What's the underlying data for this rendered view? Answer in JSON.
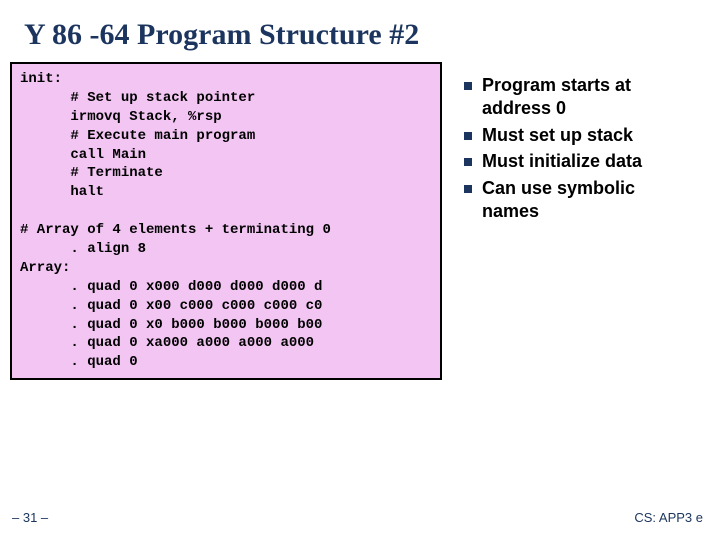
{
  "title": "Y 86 -64 Program Structure #2",
  "code": "init:\n      # Set up stack pointer\n      irmovq Stack, %rsp\n      # Execute main program\n      call Main\n      # Terminate\n      halt\n\n# Array of 4 elements + terminating 0\n      . align 8\nArray:\n      . quad 0 x000 d000 d000 d000 d\n      . quad 0 x00 c000 c000 c000 c0\n      . quad 0 x0 b000 b000 b000 b00\n      . quad 0 xa000 a000 a000 a000\n      . quad 0",
  "bullets": [
    "Program starts at address 0",
    "Must set up stack",
    "Must initialize data",
    "Can use symbolic names"
  ],
  "footer": {
    "left": "– 31 –",
    "right": "CS: APP3 e"
  },
  "colors": {
    "title": "#1c355e",
    "code_bg": "#f3c5f3",
    "bullet_marker": "#1c355e"
  }
}
